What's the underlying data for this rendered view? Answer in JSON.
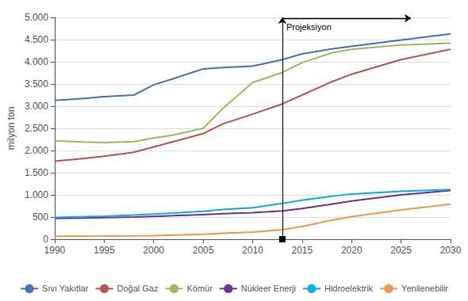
{
  "chart_data": {
    "type": "line",
    "ylabel": "milyon ton",
    "x": [
      1990,
      1993,
      1995,
      1998,
      2000,
      2002,
      2005,
      2007,
      2010,
      2013,
      2015,
      2018,
      2020,
      2025,
      2030
    ],
    "series": [
      {
        "name": "Sıvı Yakıtlar",
        "color": "#4472C4",
        "values": [
          3130,
          3175,
          3215,
          3250,
          3480,
          3620,
          3840,
          3870,
          3900,
          4050,
          4180,
          4290,
          4350,
          4490,
          4630
        ]
      },
      {
        "name": "Doğal Gaz",
        "color": "#C0504D",
        "values": [
          1760,
          1820,
          1870,
          1960,
          2080,
          2200,
          2380,
          2600,
          2820,
          3050,
          3250,
          3550,
          3720,
          4050,
          4280
        ]
      },
      {
        "name": "Kömür",
        "color": "#9BBB59",
        "values": [
          2220,
          2190,
          2180,
          2200,
          2280,
          2350,
          2500,
          2950,
          3530,
          3760,
          3980,
          4200,
          4280,
          4380,
          4420
        ]
      },
      {
        "name": "Nükleer Enerji",
        "color": "#7030A0",
        "values": [
          470,
          478,
          488,
          500,
          515,
          530,
          555,
          575,
          600,
          640,
          690,
          790,
          860,
          1000,
          1100
        ]
      },
      {
        "name": "Hidroelektrik",
        "color": "#00B0F0",
        "values": [
          490,
          508,
          520,
          545,
          565,
          590,
          630,
          670,
          710,
          810,
          880,
          970,
          1020,
          1080,
          1120
        ]
      },
      {
        "name": "Yenilenebilir",
        "color": "#F79646",
        "values": [
          65,
          68,
          70,
          75,
          82,
          95,
          110,
          135,
          160,
          215,
          285,
          430,
          510,
          660,
          790
        ]
      }
    ],
    "xlim": [
      1990,
      2030
    ],
    "xticks": [
      1990,
      1995,
      2000,
      2005,
      2010,
      2015,
      2020,
      2025,
      2030
    ],
    "ylim": [
      0,
      5000
    ],
    "yticks": [
      0,
      500,
      {
        "value": 1000,
        "label": "1.000"
      },
      {
        "value": 1500,
        "label": "1.500"
      },
      {
        "value": 2000,
        "label": "2.000"
      },
      {
        "value": 2500,
        "label": "2.500"
      },
      {
        "value": 3000,
        "label": "3.000"
      },
      {
        "value": 3500,
        "label": "3.500"
      },
      {
        "value": 4000,
        "label": "4.000"
      },
      {
        "value": 4500,
        "label": "4.500"
      },
      {
        "value": 5000,
        "label": "5.000"
      }
    ],
    "annotations": [
      {
        "type": "vline",
        "x": 2013,
        "text": "Projeksiyon",
        "arrow_to": 2026,
        "y": 4980
      }
    ],
    "grid": true,
    "legend": "bottom"
  }
}
